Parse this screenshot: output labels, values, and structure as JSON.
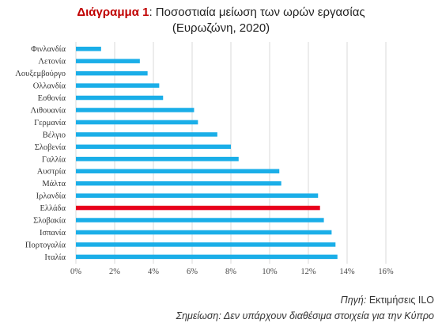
{
  "title": {
    "prefix": "Διάγραμμα 1",
    "main": ": Ποσοστιαία μείωση των ωρών εργασίας",
    "sub": "(Ευρωζώνη, 2020)"
  },
  "footer": {
    "source_key": "Πηγή:",
    "source_value": "Εκτιμήσεις ILO",
    "note": "Σημείωση: Δεν υπάρχουν διαθέσιμα στοιχεία για την Κύπρο"
  },
  "colors": {
    "bar": "#1aaee8",
    "highlight": "#e8001c",
    "grid": "#d9d9d9",
    "title_prefix": "#c00000"
  },
  "chart_data": {
    "type": "bar",
    "orientation": "horizontal",
    "categories": [
      "Φινλανδία",
      "Λετονία",
      "Λουξεμβούργο",
      "Ολλανδία",
      "Εσθονία",
      "Λιθουανία",
      "Γερμανία",
      "Βέλγιο",
      "Σλοβενία",
      "Γαλλία",
      "Αυστρία",
      "Μάλτα",
      "Ιρλανδία",
      "Ελλάδα",
      "Σλοβακία",
      "Ισπανία",
      "Πορτογαλία",
      "Ιταλία"
    ],
    "values": [
      1.3,
      3.3,
      3.7,
      4.3,
      4.5,
      6.1,
      6.3,
      7.3,
      8.0,
      8.4,
      10.5,
      10.6,
      12.5,
      12.6,
      12.8,
      13.2,
      13.4,
      13.5
    ],
    "highlight_category": "Ελλάδα",
    "xlim": [
      0,
      16
    ],
    "xticks": [
      0,
      2,
      4,
      6,
      8,
      10,
      12,
      14,
      16
    ],
    "tick_suffix": "%",
    "grid": "vertical"
  }
}
